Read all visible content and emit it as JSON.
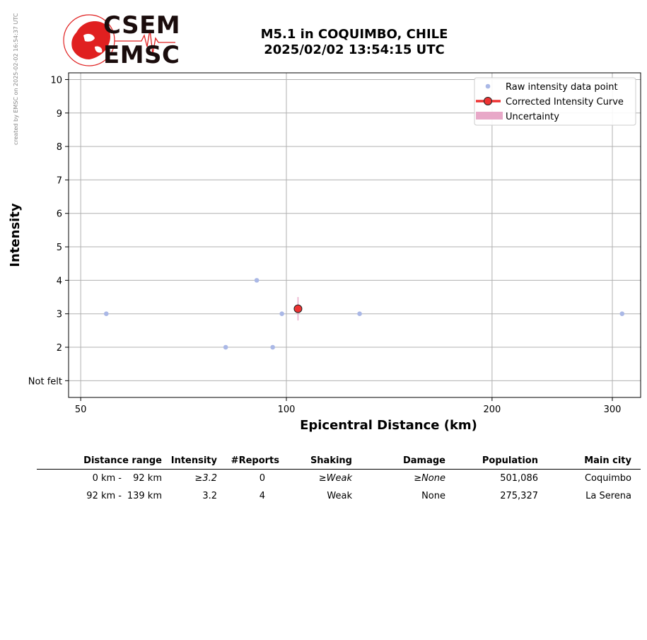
{
  "credit": "created by EMSC on 2025-02-02 16:54:37 UTC",
  "logo": {
    "line1": "CSEM",
    "line2": "EMSC",
    "accent": "#e02020"
  },
  "title": {
    "line1": "M5.1 in COQUIMBO, CHILE",
    "line2": "2025/02/02 13:54:15 UTC"
  },
  "chart_data": {
    "type": "scatter",
    "xlabel": "Epicentral Distance (km)",
    "ylabel": "Intensity",
    "x_scale": "log",
    "xlim": [
      48,
      330
    ],
    "ylim": [
      0.5,
      10.2
    ],
    "x_ticks": [
      50,
      100,
      200,
      300
    ],
    "x_tick_labels": [
      "50",
      "100",
      "200",
      "300"
    ],
    "y_ticks": [
      1,
      2,
      3,
      4,
      5,
      6,
      7,
      8,
      9,
      10
    ],
    "y_tick_labels": [
      "Not felt",
      "2",
      "3",
      "4",
      "5",
      "6",
      "7",
      "8",
      "9",
      "10"
    ],
    "grid": true,
    "legend_position": "top-right",
    "legend": [
      "Raw intensity data point",
      "Corrected Intensity Curve",
      "Uncertainty"
    ],
    "raw_points": [
      {
        "x": 54.5,
        "y": 3
      },
      {
        "x": 81.5,
        "y": 2
      },
      {
        "x": 90.5,
        "y": 4
      },
      {
        "x": 95.5,
        "y": 2
      },
      {
        "x": 98.5,
        "y": 3
      },
      {
        "x": 128,
        "y": 3
      },
      {
        "x": 310,
        "y": 3
      }
    ],
    "corrected_points": [
      {
        "x": 104,
        "y": 3.15,
        "y_low": 2.8,
        "y_high": 3.5
      }
    ],
    "colors": {
      "raw": "#aab8e6",
      "curve": "#ee3333",
      "uncertainty": "#e8a8c8",
      "grid": "#b0b0b0"
    }
  },
  "table": {
    "headers": [
      "Distance range",
      "Intensity",
      "#Reports",
      "Shaking",
      "Damage",
      "Population",
      "Main city"
    ],
    "rows": [
      {
        "range_from": "0 km -",
        "range_to": "92 km",
        "intensity": "≥3.2",
        "reports": "0",
        "shaking": "≥Weak",
        "damage": "≥None",
        "population": "501,086",
        "city": "Coquimbo"
      },
      {
        "range_from": "92 km -",
        "range_to": "139 km",
        "intensity": "3.2",
        "reports": "4",
        "shaking": "Weak",
        "damage": "None",
        "population": "275,327",
        "city": "La Serena"
      }
    ]
  }
}
